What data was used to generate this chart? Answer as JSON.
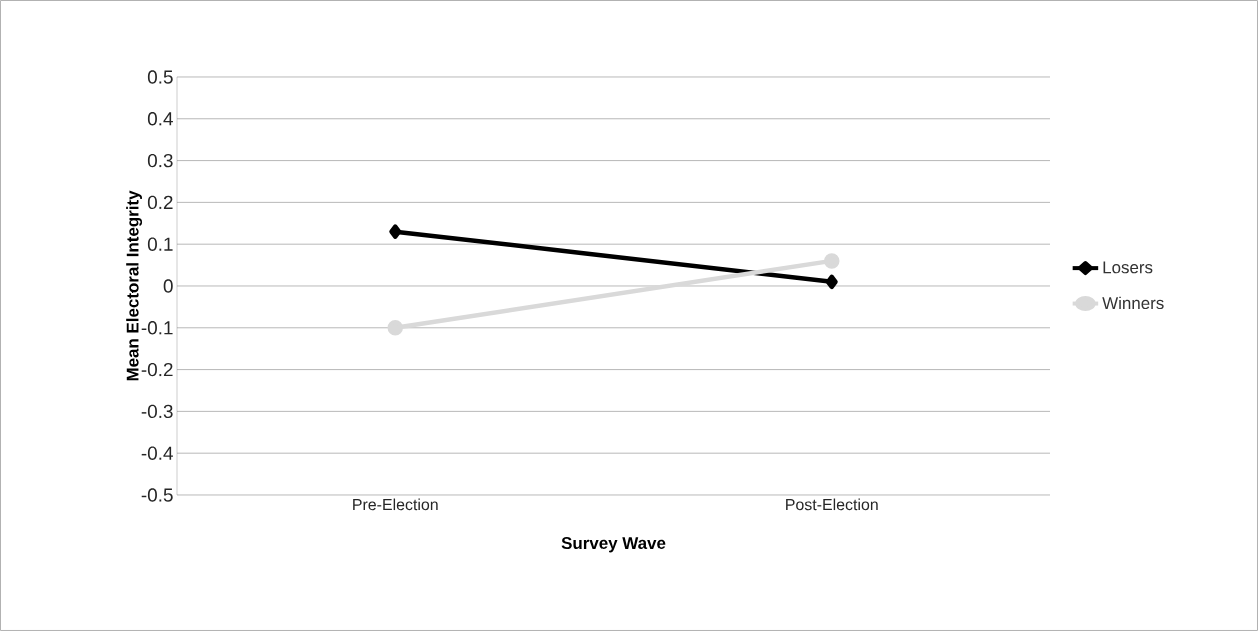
{
  "chart_data": {
    "type": "line",
    "xlabel": "Survey Wave",
    "ylabel": "Mean Electoral Integrity",
    "categories": [
      "Pre-Election",
      "Post-Election"
    ],
    "series": [
      {
        "name": "Losers",
        "color": "#000000",
        "values": [
          0.13,
          0.01
        ],
        "marker": "diamond"
      },
      {
        "name": "Winners",
        "color": "#d9d9d9",
        "values": [
          -0.1,
          0.06
        ],
        "marker": "circle"
      }
    ],
    "ylim": [
      -0.5,
      0.5
    ],
    "yticks": [
      -0.5,
      -0.4,
      -0.3,
      -0.2,
      -0.1,
      0,
      0.1,
      0.2,
      0.3,
      0.4,
      0.5
    ],
    "grid": "y",
    "legend": "right",
    "line_style": "solid"
  }
}
